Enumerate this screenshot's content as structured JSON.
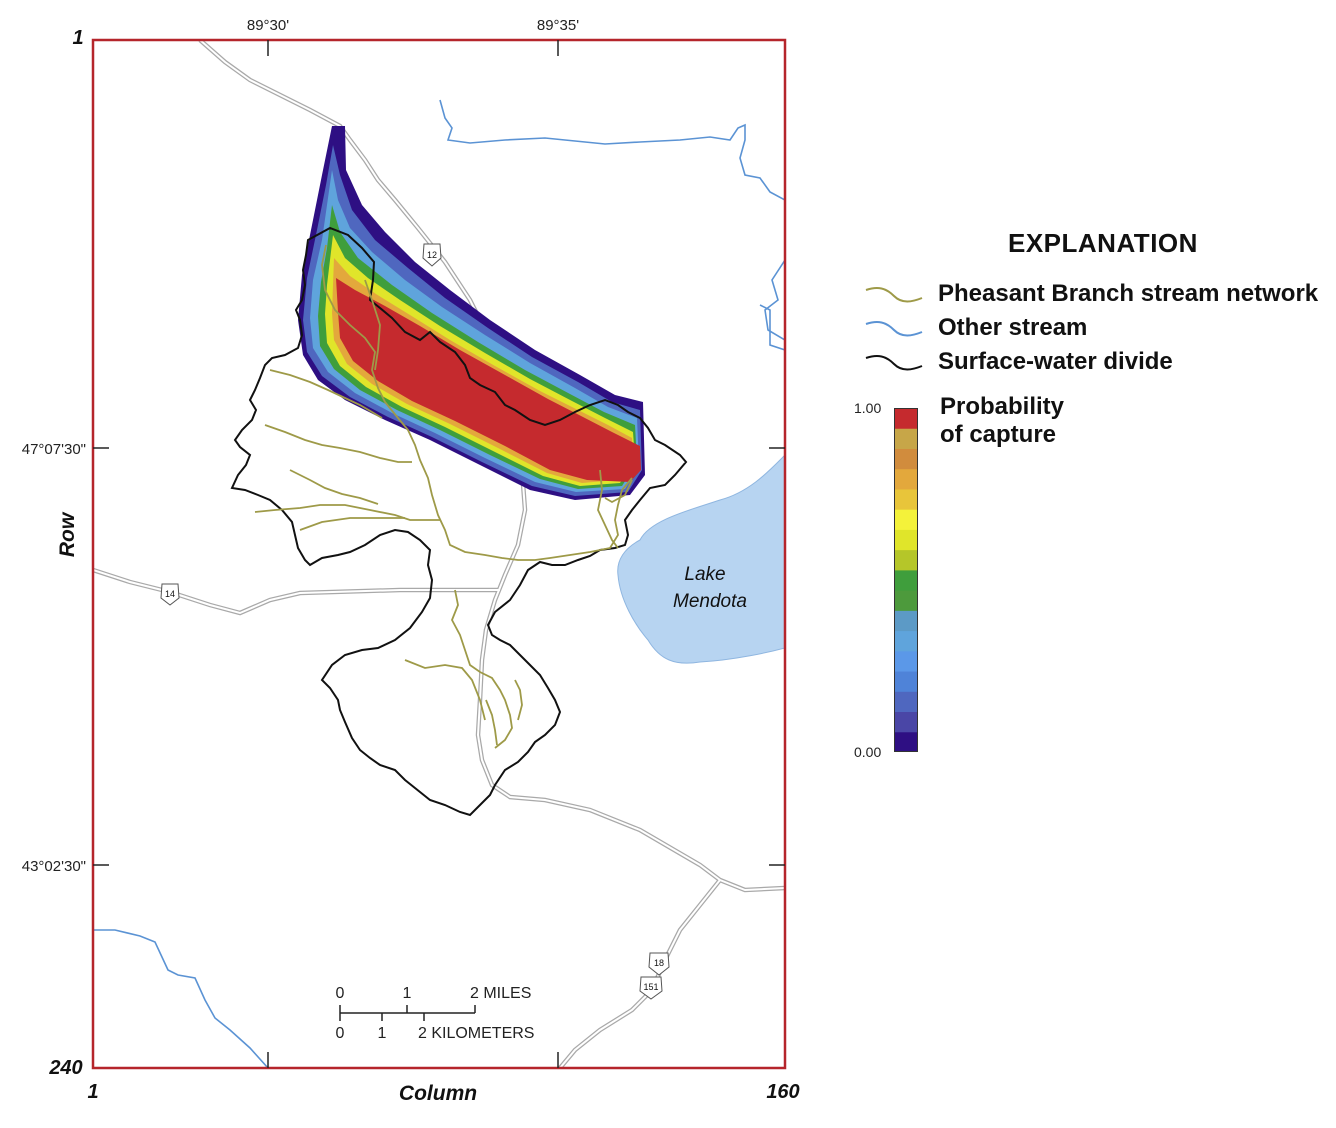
{
  "map": {
    "top_coords": [
      "89°30'",
      "89°35'"
    ],
    "left_coords": [
      "47°07'30\"",
      "43°02'30\""
    ],
    "row_top": "1",
    "row_bottom": "240",
    "col_left": "1",
    "col_right": "160",
    "row_title": "Row",
    "col_title": "Column",
    "lake_label_1": "Lake",
    "lake_label_2": "Mendota",
    "highway_shields": [
      "12",
      "14",
      "18",
      "151"
    ],
    "scale_miles": [
      "0",
      "1",
      "2 MILES"
    ],
    "scale_km": [
      "0",
      "1",
      "2 KILOMETERS"
    ]
  },
  "legend": {
    "title": "EXPLANATION",
    "items": [
      {
        "label": "Pheasant Branch stream network",
        "color": "#9e9a48"
      },
      {
        "label": "Other stream",
        "color": "#5b93d4"
      },
      {
        "label": "Surface-water divide",
        "color": "#111111"
      }
    ],
    "probability_label_1": "Probability",
    "probability_label_2": "of capture",
    "max_label": "1.00",
    "min_label": "0.00",
    "colors": [
      "#2e0f83",
      "#4a46a6",
      "#4f67bf",
      "#4f83d8",
      "#5b98e8",
      "#5fa4dc",
      "#5c9ac6",
      "#4d9a3c",
      "#3f9e3c",
      "#b5c629",
      "#e0e52a",
      "#f4f23a",
      "#e8c53a",
      "#e3a83c",
      "#d18c3d",
      "#c7a648",
      "#c52a2e"
    ]
  },
  "colors": {
    "frame": "#b5252b",
    "road": "#a9a9a9",
    "lake": "#b7d4f1",
    "capture_high": "#c52a2e"
  }
}
